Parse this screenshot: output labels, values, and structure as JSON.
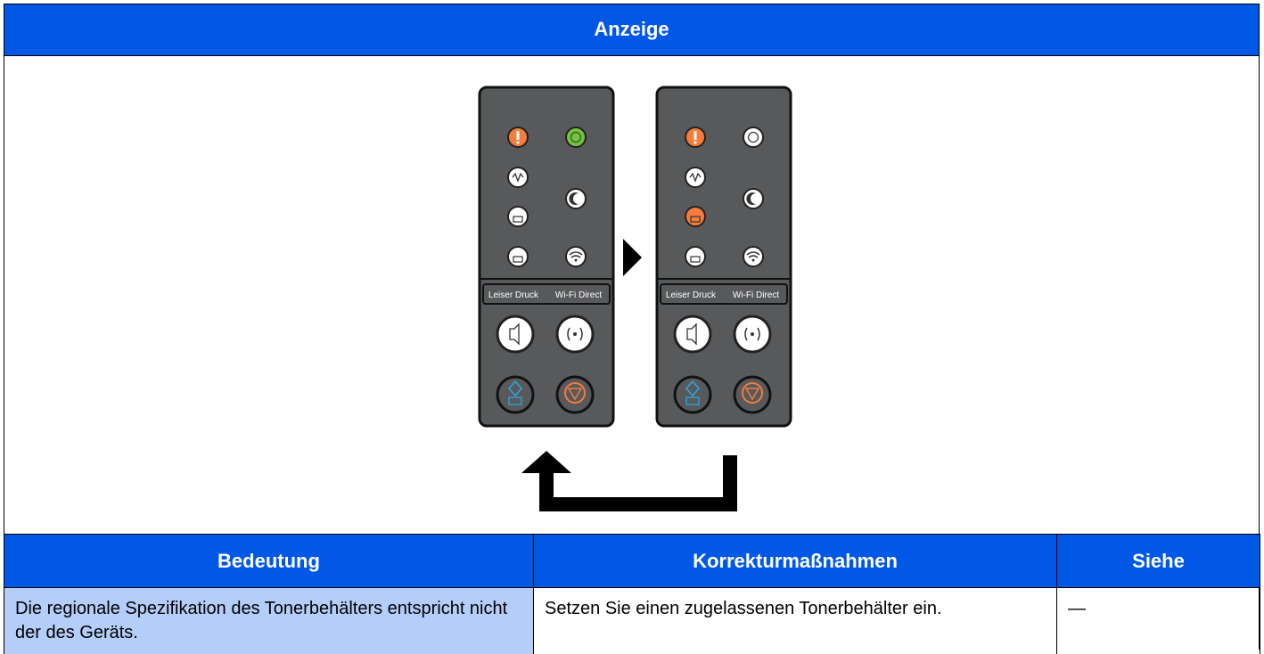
{
  "header": {
    "title": "Anzeige"
  },
  "display": {
    "panels": [
      {
        "labels": [
          "Leiser Druck",
          "Wi-Fi Direct"
        ]
      },
      {
        "labels": [
          "Leiser Druck",
          "Wi-Fi Direct"
        ]
      }
    ]
  },
  "table": {
    "columns": [
      "Bedeutung",
      "Korrekturmaßnahmen",
      "Siehe"
    ],
    "rows": [
      [
        "Die regionale Spezifikation des Tonerbehälters entspricht nicht der des Geräts.",
        "Setzen Sie einen zugelassenen Tonerbehälter ein.",
        "—"
      ]
    ]
  }
}
